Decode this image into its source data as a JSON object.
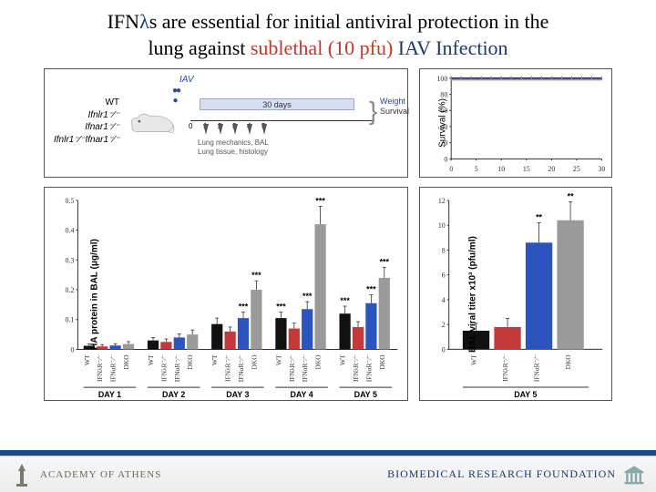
{
  "title": {
    "l1_a": "IFN",
    "l1_lambda": "λ",
    "l1_b": "s are essential for initial antiviral protection in the",
    "l2_a": "lung against ",
    "l2_red": "sublethal (10 pfu)",
    "l2_b": " IAV Infection"
  },
  "colors": {
    "wt": "#111111",
    "ifnlr": "#c43a3a",
    "ifnar": "#2c54c0",
    "dko": "#9a9a9a",
    "axis": "#333333",
    "grid": "#e4e4e4",
    "errbar": "#333333",
    "footer_blue": "#1a3a6e",
    "band": "#174a8a"
  },
  "schematic": {
    "genotypes": [
      "WT",
      "Ifnlr1⁻⁄⁻",
      "Ifnar1⁻⁄⁻",
      "Ifnlr1⁻⁄⁻Ifnar1⁻⁄⁻"
    ],
    "iav": "IAV",
    "days_bar": "30 days",
    "ticks": [
      "0",
      "1",
      "2",
      "3",
      "4",
      "5"
    ],
    "readouts_l1": "Lung mechanics, BAL",
    "readouts_l2": "Lung tissue, histology",
    "brace_l1": "Weight",
    "brace_l2": "Survival"
  },
  "survival": {
    "label": "Survival (%)",
    "ylim": [
      0,
      100
    ],
    "ytick_step": 20,
    "xlim": [
      0,
      30
    ],
    "xtick_step": 5,
    "series_y": 100
  },
  "ha": {
    "ylabel": "HA protein in BAL (μg/ml)",
    "ylim": [
      0,
      0.5
    ],
    "yticks": [
      0.0,
      0.1,
      0.2,
      0.3,
      0.4,
      0.5
    ],
    "groups": [
      "DAY 1",
      "DAY 2",
      "DAY 3",
      "DAY 4",
      "DAY 5"
    ],
    "cats": [
      "WT",
      "IFNλR⁻⁄⁻",
      "IFNαR⁻⁄⁻",
      "DKO"
    ],
    "values": [
      [
        0.012,
        0.01,
        0.013,
        0.018
      ],
      [
        0.03,
        0.025,
        0.04,
        0.05
      ],
      [
        0.085,
        0.06,
        0.105,
        0.2
      ],
      [
        0.105,
        0.07,
        0.135,
        0.42
      ],
      [
        0.12,
        0.075,
        0.155,
        0.24
      ]
    ],
    "errs": [
      [
        0.006,
        0.006,
        0.006,
        0.008
      ],
      [
        0.01,
        0.01,
        0.012,
        0.015
      ],
      [
        0.02,
        0.015,
        0.02,
        0.03
      ],
      [
        0.02,
        0.018,
        0.025,
        0.06
      ],
      [
        0.025,
        0.018,
        0.028,
        0.035
      ]
    ],
    "sig": [
      [
        null,
        null,
        null,
        null
      ],
      [
        null,
        null,
        null,
        null
      ],
      [
        null,
        null,
        "***",
        "***"
      ],
      [
        "***",
        null,
        "***",
        "***"
      ],
      [
        "***",
        null,
        "***",
        "***"
      ]
    ]
  },
  "viral": {
    "ylabel": "BAL viral titer x10³ (pfu/ml)",
    "ylim": [
      0,
      12
    ],
    "yticks": [
      0,
      2,
      4,
      6,
      8,
      10,
      12
    ],
    "group": "DAY 5",
    "cats": [
      "WT",
      "IFNλR⁻⁄⁻",
      "IFNαR⁻⁄⁻",
      "DKO"
    ],
    "values": [
      1.5,
      1.8,
      8.6,
      10.4
    ],
    "errs": [
      0.6,
      0.7,
      1.6,
      1.5
    ],
    "sig": [
      null,
      null,
      "**",
      "**"
    ]
  },
  "footer": {
    "left": "ACADEMY      OF ATHENS",
    "right": "BIOMEDICAL RESEARCH FOUNDATION"
  }
}
